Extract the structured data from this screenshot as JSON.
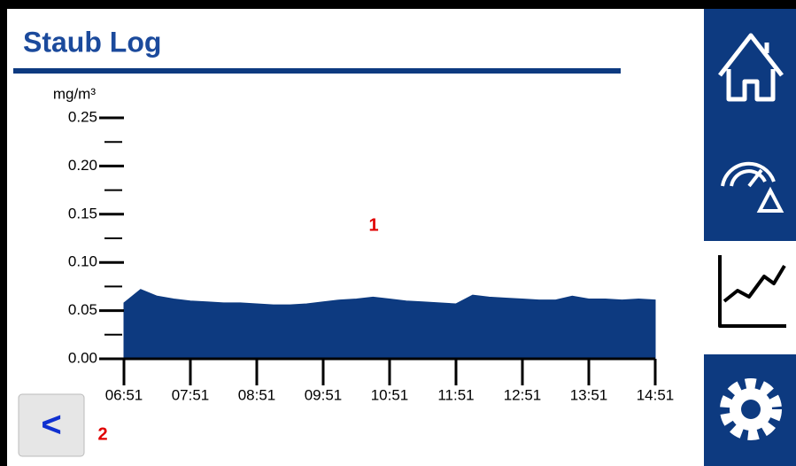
{
  "header": {
    "title": "Staub Log"
  },
  "back_button": {
    "label": "<"
  },
  "annotations": [
    "1",
    "2"
  ],
  "chart_data": {
    "type": "area",
    "y_label": "mg/m³",
    "color": "#0d3a80",
    "x": [
      "06:51",
      "07:06",
      "07:21",
      "07:36",
      "07:51",
      "08:06",
      "08:21",
      "08:36",
      "08:51",
      "09:06",
      "09:21",
      "09:36",
      "09:51",
      "10:06",
      "10:21",
      "10:36",
      "10:51",
      "11:06",
      "11:21",
      "11:36",
      "11:51",
      "12:06",
      "12:21",
      "12:36",
      "12:51",
      "13:06",
      "13:21",
      "13:36",
      "13:51",
      "14:06",
      "14:21",
      "14:36",
      "14:51"
    ],
    "values": [
      0.058,
      0.072,
      0.065,
      0.062,
      0.06,
      0.059,
      0.058,
      0.058,
      0.057,
      0.056,
      0.056,
      0.057,
      0.059,
      0.061,
      0.062,
      0.064,
      0.062,
      0.06,
      0.059,
      0.058,
      0.057,
      0.066,
      0.064,
      0.063,
      0.062,
      0.061,
      0.061,
      0.065,
      0.062,
      0.062,
      0.061,
      0.062,
      0.061
    ],
    "xlim": [
      "06:51",
      "14:51"
    ],
    "xticks": [
      "06:51",
      "07:51",
      "08:51",
      "09:51",
      "10:51",
      "11:51",
      "12:51",
      "13:51",
      "14:51"
    ],
    "ylim": [
      0,
      0.25
    ],
    "yticks": [
      {
        "value": 0,
        "label": "0.00"
      },
      {
        "value": 0.05,
        "label": "0.05"
      },
      {
        "value": 0.1,
        "label": "0.10"
      },
      {
        "value": 0.15,
        "label": "0.15"
      },
      {
        "value": 0.2,
        "label": "0.20"
      },
      {
        "value": 0.25,
        "label": "0.25"
      }
    ],
    "minor_yticks": [
      0.025,
      0.075,
      0.125,
      0.175,
      0.225
    ]
  }
}
